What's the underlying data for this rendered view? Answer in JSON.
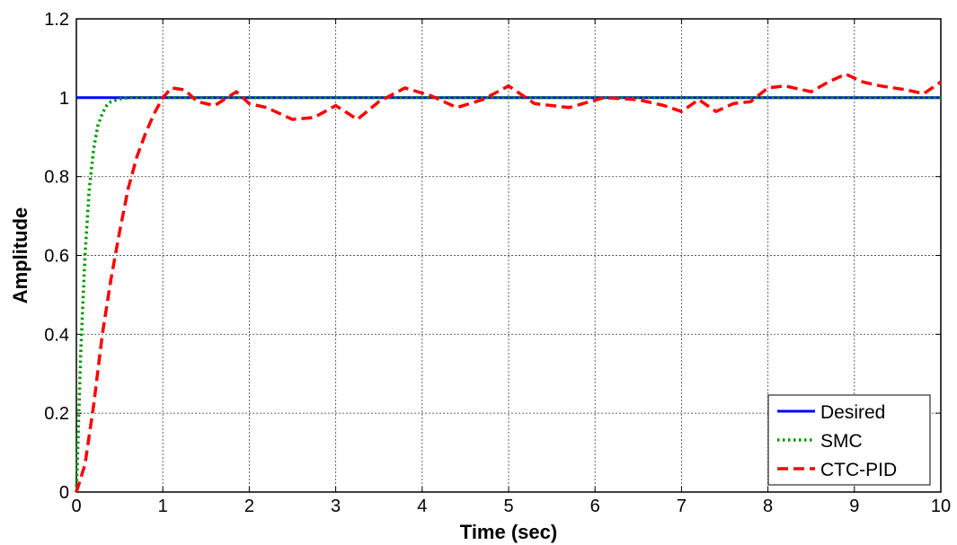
{
  "chart_data": {
    "type": "line",
    "title": "",
    "xlabel": "Time (sec)",
    "ylabel": "Amplitude",
    "xlim": [
      0,
      10
    ],
    "ylim": [
      0,
      1.2
    ],
    "xticks": [
      0,
      1,
      2,
      3,
      4,
      5,
      6,
      7,
      8,
      9,
      10
    ],
    "yticks": [
      0,
      0.2,
      0.4,
      0.6,
      0.8,
      1,
      1.2
    ],
    "xtick_labels": [
      "0",
      "1",
      "2",
      "3",
      "4",
      "5",
      "6",
      "7",
      "8",
      "9",
      "10"
    ],
    "ytick_labels": [
      "0",
      "0.2",
      "0.4",
      "0.6",
      "0.8",
      "1",
      "1.2"
    ],
    "grid": true,
    "legend_position": "bottom-right",
    "series": [
      {
        "name": "Desired",
        "color": "#0000ff",
        "style": "solid",
        "x": [
          0,
          10
        ],
        "y": [
          1,
          1
        ]
      },
      {
        "name": "SMC",
        "color": "#009900",
        "style": "dotted",
        "x": [
          0,
          0.05,
          0.1,
          0.15,
          0.2,
          0.25,
          0.3,
          0.35,
          0.4,
          0.5,
          0.6,
          0.8,
          1,
          2,
          3,
          4,
          5,
          6,
          7,
          8,
          9,
          10
        ],
        "y": [
          0,
          0.35,
          0.6,
          0.77,
          0.87,
          0.93,
          0.96,
          0.98,
          0.99,
          0.997,
          1.0,
          1.0,
          1.0,
          1.0,
          1.0,
          1.0,
          1.0,
          1.0,
          1.0,
          1.0,
          1.0,
          1.0
        ]
      },
      {
        "name": "CTC-PID",
        "color": "#ff0000",
        "style": "dashed",
        "x": [
          0,
          0.1,
          0.2,
          0.3,
          0.4,
          0.5,
          0.6,
          0.7,
          0.8,
          0.9,
          1.0,
          1.1,
          1.25,
          1.4,
          1.6,
          1.85,
          2.0,
          2.2,
          2.5,
          2.75,
          3.0,
          3.25,
          3.5,
          3.8,
          4.1,
          4.4,
          4.7,
          5.0,
          5.3,
          5.7,
          6.1,
          6.5,
          6.8,
          7.0,
          7.2,
          7.4,
          7.6,
          7.8,
          8.0,
          8.2,
          8.5,
          8.7,
          8.9,
          9.1,
          9.3,
          9.6,
          9.8,
          10.0
        ],
        "y": [
          0,
          0.07,
          0.22,
          0.4,
          0.54,
          0.66,
          0.77,
          0.85,
          0.91,
          0.96,
          1.0,
          1.025,
          1.02,
          0.99,
          0.98,
          1.015,
          0.985,
          0.975,
          0.945,
          0.95,
          0.98,
          0.945,
          0.99,
          1.025,
          1.005,
          0.975,
          0.995,
          1.03,
          0.985,
          0.975,
          1.0,
          0.995,
          0.98,
          0.965,
          0.995,
          0.965,
          0.985,
          0.99,
          1.025,
          1.03,
          1.015,
          1.04,
          1.06,
          1.04,
          1.03,
          1.02,
          1.01,
          1.04
        ]
      }
    ]
  }
}
